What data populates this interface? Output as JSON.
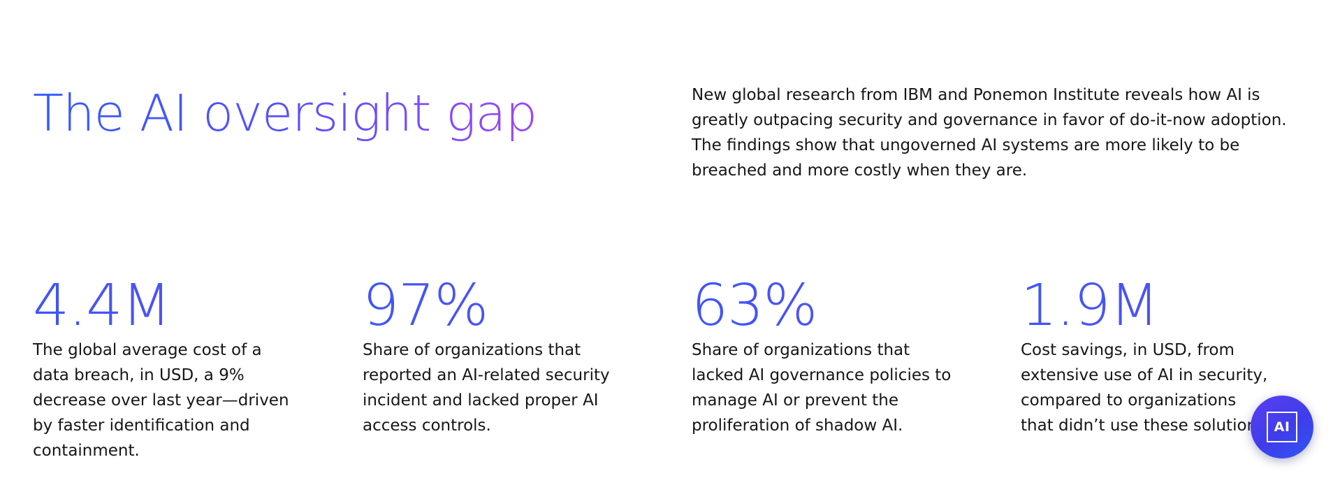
{
  "section": {
    "title": "The AI oversight gap",
    "intro": "New global research from IBM and Ponemon Institute reveals how AI is greatly outpacing security and governance in favor of do-it-now adoption. The findings show that ungoverned AI systems are more likely to be breached and more costly when they are."
  },
  "stats": [
    {
      "value": "4.4M",
      "description": "The global average cost of a data breach, in USD, a 9% decrease over last year—driven by faster identification and containment."
    },
    {
      "value": "97%",
      "description": "Share of organizations that reported an AI-related security incident and lacked proper AI access controls."
    },
    {
      "value": "63%",
      "description": "Share of organizations that lacked AI governance policies to manage AI or prevent the proliferation of shadow AI."
    },
    {
      "value": "1.9M",
      "description": "Cost savings, in USD, from extensive use of AI in security, compared to organizations that didn’t use these solutions."
    }
  ],
  "ai_assistant": {
    "label": "AI",
    "icon": "ai-chat-icon"
  },
  "colors": {
    "accent_blue": "#2f5bff",
    "accent_violet": "#9c46f5",
    "text": "#161616",
    "fab": "#4a3fee"
  }
}
